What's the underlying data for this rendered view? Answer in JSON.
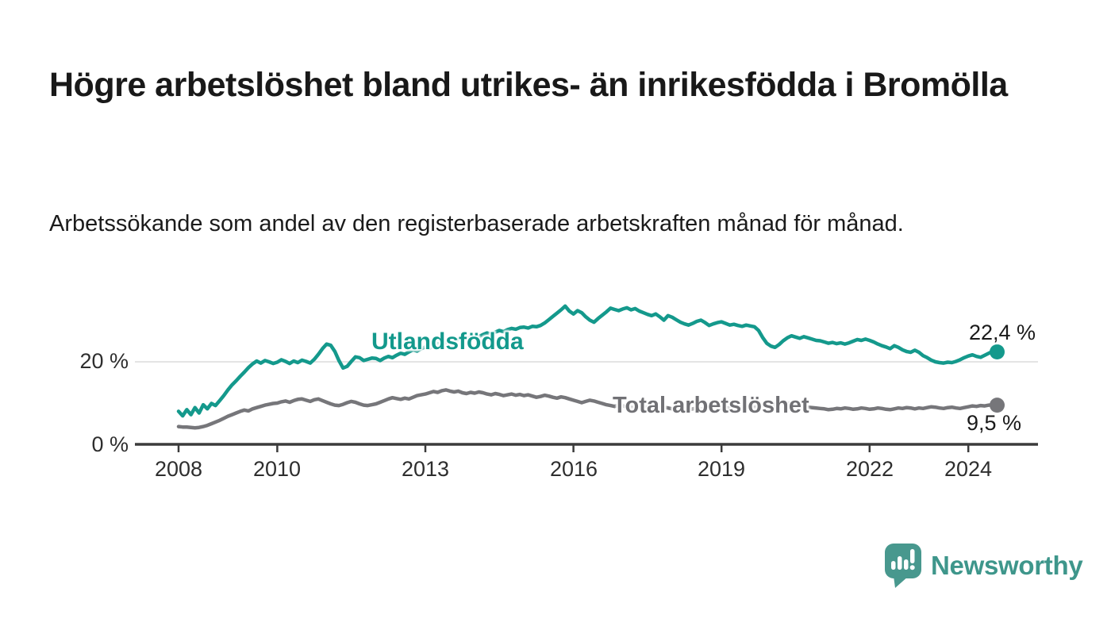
{
  "header": {
    "title": "Högre arbetslöshet bland utrikes- än inrikesfödda i Bromölla",
    "subtitle": "Arbetssökande som andel av den registerbaserade arbetskraften månad för månad."
  },
  "chart_data": {
    "type": "line",
    "title": "Högre arbetslöshet bland utrikes- än inrikesfödda i Bromölla",
    "subtitle": "Arbetssökande som andel av den registerbaserade arbetskraften månad för månad.",
    "unit": "percent",
    "x_start": "2008-01",
    "x_end": "2024-08",
    "x_frequency": "monthly",
    "x_tick_labels": [
      "2008",
      "2010",
      "2013",
      "2016",
      "2019",
      "2022",
      "2024"
    ],
    "x_tick_year_offsets": [
      0,
      2,
      5,
      8,
      11,
      14,
      16
    ],
    "y_ticks": [
      {
        "value": 0,
        "label": "0 %"
      },
      {
        "value": 20,
        "label": "20 %"
      }
    ],
    "ylim": [
      0,
      35
    ],
    "grid": "single-horizontal-gridline-at-20",
    "legend_position": "inline-labels-on-lines",
    "axis_color": "#3b3b3b",
    "gridline_color": "#dcdcdc",
    "series": [
      {
        "name": "Utlandsfödda",
        "color": "#14998c",
        "end_value": 22.4,
        "end_label": "22,4 %",
        "values": [
          8.0,
          6.9,
          8.4,
          7.2,
          8.9,
          7.6,
          9.6,
          8.6,
          9.9,
          9.4,
          10.6,
          11.8,
          13.2,
          14.4,
          15.4,
          16.5,
          17.5,
          18.6,
          19.5,
          20.2,
          19.7,
          20.3,
          20.0,
          19.6,
          19.9,
          20.5,
          20.1,
          19.6,
          20.2,
          19.8,
          20.4,
          20.1,
          19.7,
          20.6,
          21.8,
          23.2,
          24.3,
          24.0,
          22.5,
          20.3,
          18.5,
          18.9,
          20.1,
          21.2,
          21.0,
          20.3,
          20.6,
          20.9,
          20.8,
          20.3,
          20.9,
          21.3,
          21.0,
          21.6,
          22.1,
          21.8,
          22.4,
          22.9,
          22.6,
          23.2,
          23.6,
          23.3,
          23.9,
          24.4,
          24.1,
          24.7,
          25.2,
          24.9,
          25.4,
          25.8,
          25.5,
          26.0,
          26.4,
          26.1,
          26.6,
          27.0,
          26.7,
          27.2,
          27.6,
          27.3,
          27.8,
          28.1,
          27.9,
          28.3,
          28.4,
          28.2,
          28.6,
          28.5,
          28.8,
          29.4,
          30.2,
          31.0,
          31.8,
          32.6,
          33.5,
          32.3,
          31.6,
          32.4,
          31.9,
          30.9,
          30.1,
          29.6,
          30.5,
          31.3,
          32.1,
          33.0,
          32.7,
          32.4,
          32.8,
          33.1,
          32.6,
          32.9,
          32.3,
          31.9,
          31.5,
          31.2,
          31.6,
          30.9,
          30.1,
          31.2,
          30.8,
          30.2,
          29.6,
          29.2,
          28.9,
          29.3,
          29.8,
          30.1,
          29.5,
          28.8,
          29.2,
          29.5,
          29.7,
          29.3,
          28.9,
          29.1,
          28.8,
          28.6,
          28.9,
          28.7,
          28.5,
          27.6,
          25.9,
          24.5,
          23.8,
          23.5,
          24.2,
          25.1,
          25.8,
          26.3,
          26.0,
          25.7,
          26.1,
          25.8,
          25.5,
          25.2,
          25.1,
          24.8,
          24.5,
          24.7,
          24.4,
          24.6,
          24.3,
          24.6,
          25.0,
          25.4,
          25.2,
          25.5,
          25.2,
          24.8,
          24.3,
          23.9,
          23.6,
          23.2,
          23.9,
          23.5,
          22.9,
          22.5,
          22.3,
          22.8,
          22.3,
          21.5,
          21.0,
          20.4,
          20.0,
          19.8,
          19.7,
          19.9,
          19.8,
          20.1,
          20.5,
          21.0,
          21.4,
          21.7,
          21.3,
          21.1,
          21.6,
          22.1,
          22.6,
          22.4
        ]
      },
      {
        "name": "Total arbetslöshet",
        "color": "#76767a",
        "end_value": 9.5,
        "end_label": "9,5 %",
        "values": [
          4.3,
          4.2,
          4.2,
          4.1,
          4.0,
          4.1,
          4.3,
          4.6,
          5.0,
          5.4,
          5.8,
          6.3,
          6.8,
          7.2,
          7.6,
          8.0,
          8.3,
          8.1,
          8.6,
          8.9,
          9.2,
          9.5,
          9.7,
          9.9,
          10.0,
          10.3,
          10.5,
          10.2,
          10.6,
          10.9,
          11.0,
          10.7,
          10.4,
          10.8,
          11.0,
          10.6,
          10.2,
          9.8,
          9.5,
          9.4,
          9.7,
          10.1,
          10.4,
          10.2,
          9.8,
          9.5,
          9.4,
          9.6,
          9.8,
          10.2,
          10.6,
          11.0,
          11.3,
          11.1,
          10.9,
          11.2,
          11.0,
          11.4,
          11.8,
          12.0,
          12.2,
          12.5,
          12.8,
          12.6,
          13.0,
          13.2,
          12.9,
          12.7,
          12.9,
          12.5,
          12.3,
          12.6,
          12.4,
          12.7,
          12.5,
          12.2,
          12.0,
          12.3,
          12.1,
          11.8,
          12.0,
          12.2,
          11.9,
          12.1,
          11.8,
          12.0,
          11.7,
          11.4,
          11.6,
          11.9,
          11.7,
          11.4,
          11.2,
          11.5,
          11.3,
          11.0,
          10.7,
          10.4,
          10.1,
          10.4,
          10.7,
          10.5,
          10.2,
          9.9,
          9.6,
          9.4,
          9.2,
          9.5,
          9.3,
          9.1,
          9.0,
          8.8,
          8.9,
          9.1,
          9.0,
          8.8,
          8.7,
          8.9,
          9.0,
          8.8,
          8.6,
          8.5,
          8.7,
          8.6,
          8.4,
          8.6,
          8.8,
          8.6,
          8.5,
          8.7,
          8.6,
          8.8,
          8.7,
          8.9,
          8.8,
          8.6,
          8.8,
          9.0,
          8.9,
          9.1,
          9.0,
          9.2,
          9.4,
          9.6,
          9.8,
          9.6,
          9.9,
          10.2,
          10.0,
          9.8,
          9.6,
          9.4,
          9.2,
          9.0,
          8.9,
          8.8,
          8.7,
          8.6,
          8.4,
          8.5,
          8.7,
          8.6,
          8.8,
          8.7,
          8.5,
          8.6,
          8.8,
          8.7,
          8.5,
          8.6,
          8.8,
          8.7,
          8.5,
          8.4,
          8.6,
          8.8,
          8.7,
          8.9,
          8.8,
          8.6,
          8.8,
          8.7,
          8.9,
          9.1,
          9.0,
          8.8,
          8.7,
          8.9,
          9.0,
          8.8,
          8.7,
          8.9,
          9.1,
          9.3,
          9.2,
          9.4,
          9.3,
          9.5,
          9.6,
          9.5
        ]
      }
    ]
  },
  "footer": {
    "brand": "Newsworthy",
    "brand_color": "#3e968b",
    "logo_icon": "newsworthy-speech-bubble-chart-icon"
  }
}
